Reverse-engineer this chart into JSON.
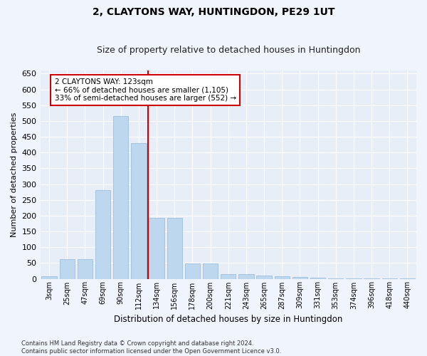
{
  "title": "2, CLAYTONS WAY, HUNTINGDON, PE29 1UT",
  "subtitle": "Size of property relative to detached houses in Huntingdon",
  "xlabel": "Distribution of detached houses by size in Huntingdon",
  "ylabel": "Number of detached properties",
  "categories": [
    "3sqm",
    "25sqm",
    "47sqm",
    "69sqm",
    "90sqm",
    "112sqm",
    "134sqm",
    "156sqm",
    "178sqm",
    "200sqm",
    "221sqm",
    "243sqm",
    "265sqm",
    "287sqm",
    "309sqm",
    "331sqm",
    "353sqm",
    "374sqm",
    "396sqm",
    "418sqm",
    "440sqm"
  ],
  "values": [
    8,
    63,
    63,
    280,
    515,
    430,
    193,
    193,
    48,
    48,
    15,
    15,
    10,
    8,
    5,
    3,
    2,
    1,
    1,
    1,
    1
  ],
  "bar_color": "#bdd7ee",
  "bar_edge_color": "#9dbfe0",
  "property_label": "2 CLAYTONS WAY: 123sqm",
  "annotation_line1": "← 66% of detached houses are smaller (1,105)",
  "annotation_line2": "33% of semi-detached houses are larger (552) →",
  "annotation_box_color": "#ffffff",
  "annotation_box_edge": "#cc0000",
  "vline_color": "#cc0000",
  "vline_x": 5.5,
  "ylim": [
    0,
    660
  ],
  "yticks": [
    0,
    50,
    100,
    150,
    200,
    250,
    300,
    350,
    400,
    450,
    500,
    550,
    600,
    650
  ],
  "bg_color": "#e8eef8",
  "grid_color": "#ffffff",
  "footer1": "Contains HM Land Registry data © Crown copyright and database right 2024.",
  "footer2": "Contains public sector information licensed under the Open Government Licence v3.0.",
  "title_fontsize": 10,
  "subtitle_fontsize": 9,
  "fig_bg": "#f0f4fc"
}
